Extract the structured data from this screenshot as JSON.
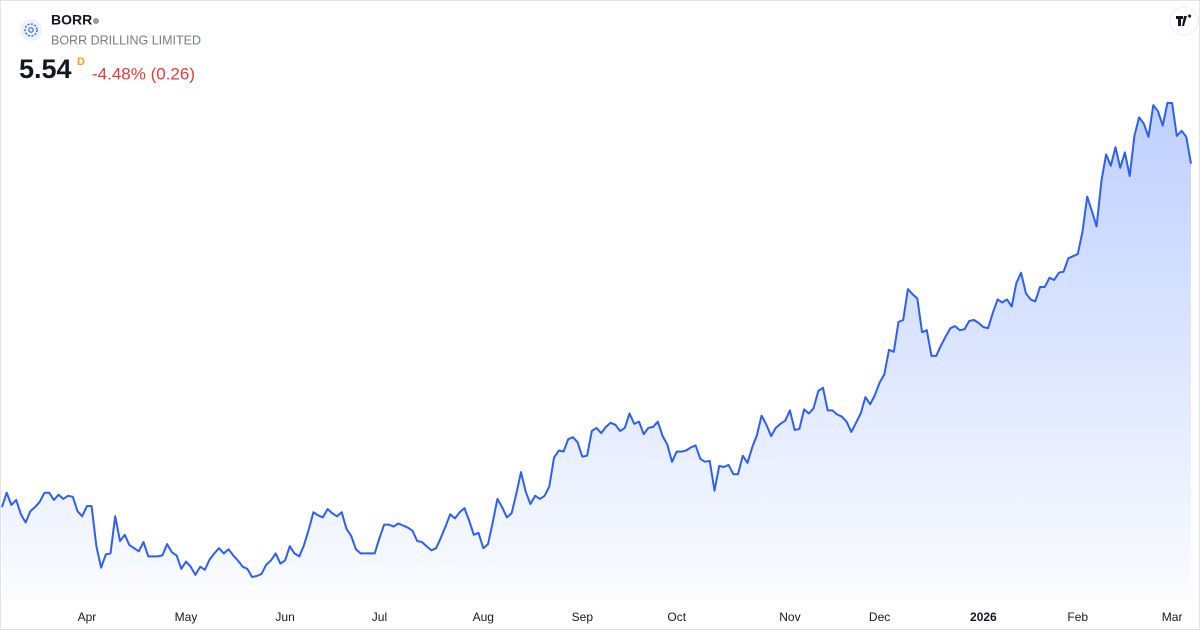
{
  "chart_data": {
    "type": "area",
    "symbol": "BORR",
    "company": "BORR DRILLING LIMITED",
    "last": 5.54,
    "interval": "D",
    "change": "-4.48% (0.26)",
    "color": "#2e5ff0",
    "values": [
      2.2,
      2.34,
      2.22,
      2.27,
      2.13,
      2.05,
      2.16,
      2.2,
      2.25,
      2.34,
      2.34,
      2.27,
      2.32,
      2.28,
      2.31,
      2.3,
      2.16,
      2.11,
      2.21,
      2.21,
      1.82,
      1.61,
      1.74,
      1.75,
      2.11,
      1.87,
      1.93,
      1.83,
      1.8,
      1.77,
      1.86,
      1.72,
      1.72,
      1.72,
      1.73,
      1.84,
      1.76,
      1.73,
      1.6,
      1.67,
      1.62,
      1.54,
      1.62,
      1.59,
      1.69,
      1.75,
      1.8,
      1.75,
      1.79,
      1.73,
      1.68,
      1.62,
      1.6,
      1.52,
      1.53,
      1.55,
      1.64,
      1.68,
      1.75,
      1.65,
      1.68,
      1.82,
      1.75,
      1.72,
      1.83,
      1.98,
      2.15,
      2.12,
      2.1,
      2.18,
      2.14,
      2.11,
      2.15,
      1.99,
      1.92,
      1.79,
      1.75,
      1.75,
      1.75,
      1.75,
      1.9,
      2.03,
      2.03,
      2.01,
      2.04,
      2.02,
      2.0,
      1.97,
      1.87,
      1.86,
      1.82,
      1.78,
      1.8,
      1.9,
      2.01,
      2.13,
      2.09,
      2.15,
      2.19,
      2.07,
      1.93,
      1.95,
      1.8,
      1.84,
      2.05,
      2.28,
      2.2,
      2.1,
      2.14,
      2.33,
      2.54,
      2.35,
      2.23,
      2.31,
      2.28,
      2.31,
      2.4,
      2.68,
      2.75,
      2.74,
      2.86,
      2.88,
      2.83,
      2.69,
      2.7,
      2.94,
      2.97,
      2.92,
      2.98,
      3.02,
      3.0,
      2.94,
      2.97,
      3.11,
      3.01,
      3.03,
      2.91,
      2.97,
      2.98,
      3.03,
      2.89,
      2.81,
      2.64,
      2.74,
      2.74,
      2.75,
      2.78,
      2.8,
      2.67,
      2.64,
      2.65,
      2.36,
      2.6,
      2.59,
      2.61,
      2.52,
      2.52,
      2.7,
      2.63,
      2.78,
      2.9,
      3.09,
      3.0,
      2.89,
      2.97,
      3.01,
      3.04,
      3.14,
      2.95,
      2.96,
      3.15,
      3.11,
      3.16,
      3.33,
      3.36,
      3.14,
      3.14,
      3.1,
      3.08,
      3.03,
      2.93,
      3.02,
      3.11,
      3.27,
      3.2,
      3.29,
      3.41,
      3.49,
      3.73,
      3.71,
      4.0,
      4.02,
      4.32,
      4.27,
      4.23,
      3.9,
      3.92,
      3.67,
      3.67,
      3.77,
      3.86,
      3.94,
      3.96,
      3.92,
      3.93,
      4.01,
      4.02,
      3.99,
      3.95,
      3.94,
      4.09,
      4.22,
      4.19,
      4.22,
      4.15,
      4.38,
      4.48,
      4.28,
      4.22,
      4.2,
      4.34,
      4.34,
      4.43,
      4.41,
      4.48,
      4.49,
      4.62,
      4.64,
      4.66,
      4.88,
      5.22,
      5.08,
      4.93,
      5.37,
      5.63,
      5.52,
      5.7,
      5.5,
      5.65,
      5.42,
      5.81,
      5.99,
      5.93,
      5.8,
      6.11,
      6.05,
      5.91,
      6.13,
      6.13,
      5.81,
      5.86,
      5.8,
      5.54
    ],
    "xticks": [
      {
        "value": 18,
        "label": "Apr"
      },
      {
        "value": 39,
        "label": "May"
      },
      {
        "value": 60,
        "label": "Jun"
      },
      {
        "value": 80,
        "label": "Jul"
      },
      {
        "value": 102,
        "label": "Aug"
      },
      {
        "value": 123,
        "label": "Sep"
      },
      {
        "value": 143,
        "label": "Oct"
      },
      {
        "value": 167,
        "label": "Nov"
      },
      {
        "value": 186,
        "label": "Dec"
      },
      {
        "value": 208,
        "label": "2026"
      },
      {
        "value": 228,
        "label": "Feb"
      },
      {
        "value": 248,
        "label": "Mar"
      }
    ]
  }
}
